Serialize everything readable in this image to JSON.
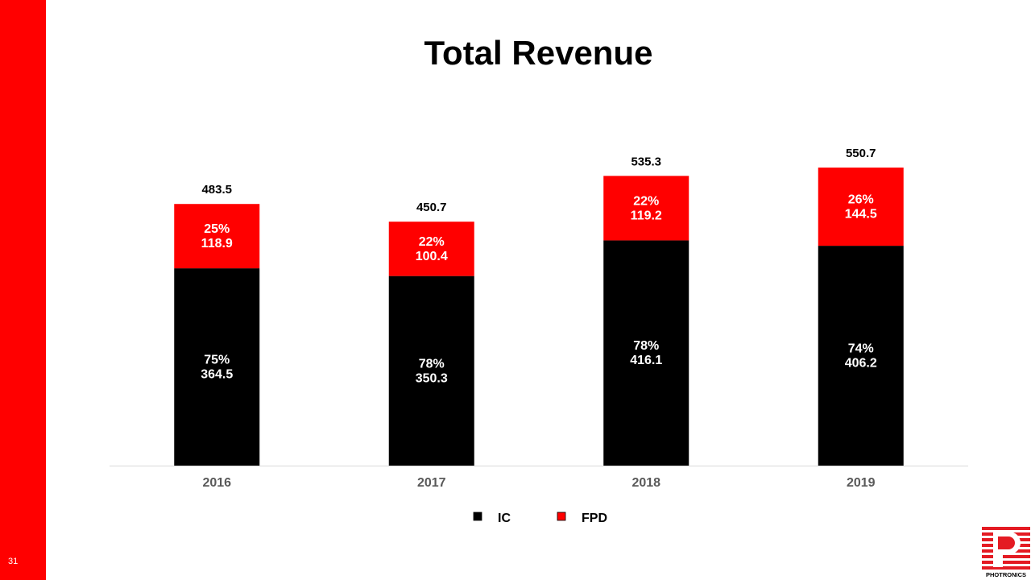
{
  "slide": {
    "title": "Total Revenue",
    "page_number": "31",
    "accent_color": "#ff0000"
  },
  "logo": {
    "text": "PHOTRONICS",
    "icon": "photronics-logo-icon"
  },
  "chart_data": {
    "type": "bar",
    "stacked": true,
    "categories": [
      "2016",
      "2017",
      "2018",
      "2019"
    ],
    "series": [
      {
        "name": "IC",
        "color": "#000000",
        "values": [
          364.5,
          350.3,
          416.1,
          406.2
        ],
        "labels": [
          "75%\n364.5",
          "78%\n350.3",
          "78%\n416.1",
          "74%\n406.2"
        ]
      },
      {
        "name": "FPD",
        "color": "#ff0000",
        "values": [
          118.9,
          100.4,
          119.2,
          144.5
        ],
        "labels": [
          "25%\n118.9",
          "22%\n100.4",
          "22%\n119.2",
          "26%\n144.5"
        ]
      }
    ],
    "totals": [
      "483.5",
      "450.7",
      "535.3",
      "550.7"
    ],
    "ylim": [
      0,
      600
    ],
    "grid": false,
    "legend_position": "bottom"
  }
}
